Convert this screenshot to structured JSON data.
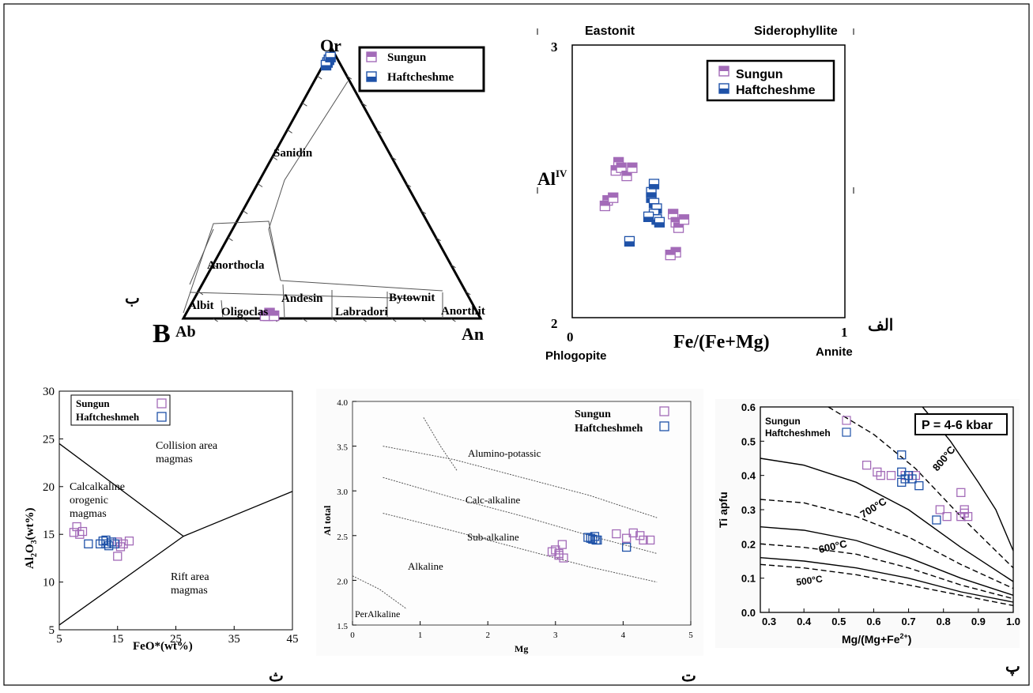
{
  "figure": {
    "colors": {
      "sungun": "#a36bb8",
      "haftcheshme": "#1f52a8",
      "frame": "#000000"
    }
  },
  "ternary": {
    "apex_top": "Or",
    "apex_left": "Ab",
    "apex_right": "An",
    "corner_letter": "B",
    "panel_label": "ب",
    "legend": [
      "Sungun",
      "Haftcheshme"
    ],
    "field_labels": [
      "Sanidin",
      "Anorthocla",
      "Albit",
      "Oligoclas",
      "Andesin",
      "Labradori",
      "Bytownit",
      "Anorthit"
    ],
    "chart_data": {
      "type": "scatter",
      "title": "",
      "components": [
        "Ab",
        "Or",
        "An"
      ],
      "series": [
        {
          "name": "Sungun",
          "points": [
            [
              71,
              1,
              28
            ],
            [
              70,
              2,
              28
            ],
            [
              72,
              1,
              27
            ],
            [
              69,
              1,
              30
            ]
          ]
        },
        {
          "name": "Haftcheshme",
          "points": [
            [
              4,
              95,
              1
            ],
            [
              3,
              96,
              1
            ],
            [
              5,
              94,
              1
            ],
            [
              2,
              97,
              1
            ]
          ]
        }
      ]
    }
  },
  "biotite": {
    "top_left_label": "Eastonit",
    "top_right_label": "Siderophyllite",
    "bottom_left_label": "Phlogopite",
    "bottom_right_label": "Annite",
    "ylabel_main": "Al",
    "ylabel_sup": "IV",
    "xlabel": "Fe/(Fe+Mg)",
    "y_top_tick": "3",
    "y_bottom_tick": "2",
    "x_left_tick": "0",
    "x_right_tick": "1",
    "panel_label": "الف",
    "legend": [
      "Sungun",
      "Haftcheshme"
    ],
    "chart_data": {
      "type": "scatter",
      "xlim": [
        0,
        1
      ],
      "ylim": [
        2,
        3
      ],
      "series": [
        {
          "name": "Sungun",
          "points": [
            [
              0.17,
              2.57
            ],
            [
              0.16,
              2.54
            ],
            [
              0.18,
              2.55
            ],
            [
              0.2,
              2.52
            ],
            [
              0.22,
              2.55
            ],
            [
              0.13,
              2.43
            ],
            [
              0.12,
              2.41
            ],
            [
              0.15,
              2.44
            ],
            [
              0.37,
              2.38
            ],
            [
              0.38,
              2.35
            ],
            [
              0.39,
              2.33
            ],
            [
              0.41,
              2.36
            ],
            [
              0.38,
              2.24
            ],
            [
              0.36,
              2.23
            ]
          ]
        },
        {
          "name": "Haftcheshme",
          "points": [
            [
              0.29,
              2.44
            ],
            [
              0.3,
              2.42
            ],
            [
              0.31,
              2.4
            ],
            [
              0.3,
              2.38
            ],
            [
              0.31,
              2.36
            ],
            [
              0.32,
              2.35
            ],
            [
              0.28,
              2.37
            ],
            [
              0.29,
              2.46
            ],
            [
              0.3,
              2.49
            ],
            [
              0.21,
              2.28
            ]
          ]
        }
      ]
    }
  },
  "feo": {
    "xlabel": "FeO*(wt%)",
    "ylabel_main": "Al",
    "ylabel_sub1": "2",
    "ylabel_mid": "O",
    "ylabel_sub2": "3",
    "ylabel_tail": "(wt%)",
    "x_ticks": [
      "5",
      "15",
      "25",
      "35",
      "45"
    ],
    "y_ticks": [
      "5",
      "10",
      "15",
      "20",
      "25",
      "30"
    ],
    "region_labels": {
      "collision_1": "Collision area",
      "collision_2": "magmas",
      "calc_1": "Calcalkaline",
      "calc_2": "orogenic",
      "calc_3": "magmas",
      "rift_1": "Rift area",
      "rift_2": "magmas"
    },
    "panel_label": "ث",
    "legend": [
      "Sungun",
      "Haftcheshmeh"
    ],
    "chart_data": {
      "type": "scatter",
      "xlim": [
        5,
        45
      ],
      "ylim": [
        5,
        30
      ],
      "series": [
        {
          "name": "Sungun",
          "x": [
            7.5,
            8.0,
            8.5,
            9.0,
            15.0,
            15.5,
            16.0,
            17.0,
            15.0
          ],
          "y": [
            15.2,
            15.8,
            15.0,
            15.3,
            14.2,
            13.7,
            14.0,
            14.3,
            12.7
          ]
        },
        {
          "name": "Haftcheshmeh",
          "x": [
            10.0,
            12.0,
            12.5,
            13.0,
            13.5,
            14.0,
            14.5,
            13.0
          ],
          "y": [
            14.0,
            14.0,
            14.3,
            14.0,
            13.8,
            14.2,
            14.0,
            14.4
          ]
        }
      ]
    }
  },
  "altotal": {
    "xlabel": "Mg",
    "ylabel": "Al total",
    "x_ticks": [
      "0",
      "1",
      "2",
      "3",
      "4",
      "5"
    ],
    "y_ticks": [
      "1.5",
      "2.0",
      "2.5",
      "3.0",
      "3.5",
      "4.0"
    ],
    "region_labels": {
      "alumino": "Alumino-potassic",
      "calc": "Calc-alkaline",
      "sub": "Sub-alkaline",
      "alkaline": "Alkaline",
      "per": "PerAlkaline"
    },
    "panel_label": "ت",
    "legend": [
      "Sungun",
      "Haftcheshmeh"
    ],
    "chart_data": {
      "type": "scatter",
      "xlim": [
        0,
        5
      ],
      "ylim": [
        1.5,
        4.0
      ],
      "series": [
        {
          "name": "Sungun",
          "x": [
            2.95,
            3.0,
            3.05,
            3.1,
            3.12,
            3.05,
            3.9,
            4.05,
            4.15,
            4.25,
            4.3,
            4.4
          ],
          "y": [
            2.32,
            2.34,
            2.28,
            2.4,
            2.25,
            2.3,
            2.52,
            2.47,
            2.53,
            2.5,
            2.45,
            2.45
          ]
        },
        {
          "name": "Haftcheshmeh",
          "x": [
            3.48,
            3.52,
            3.55,
            3.6,
            3.62,
            3.58,
            4.05
          ],
          "y": [
            2.48,
            2.47,
            2.46,
            2.45,
            2.45,
            2.49,
            2.37
          ]
        }
      ]
    }
  },
  "ti": {
    "xlabel": "Mg/(Mg+Fe",
    "xlabel_sup": "2+",
    "xlabel_tail": ")",
    "ylabel": "Ti apfu",
    "x_ticks": [
      "0.3",
      "0.4",
      "0.5",
      "0.6",
      "0.7",
      "0.8",
      "0.9",
      "1.0"
    ],
    "y_ticks": [
      "0.0",
      "0.1",
      "0.2",
      "0.3",
      "0.4",
      "0.5",
      "0.6"
    ],
    "pressure_label": "P = 4-6 kbar",
    "isotherm_labels": [
      "800°C",
      "700°C",
      "600°C",
      "500°C"
    ],
    "panel_label": "پ",
    "legend": [
      "Sungun",
      "Haftcheshmeh"
    ],
    "chart_data": {
      "type": "scatter",
      "xlim": [
        0.275,
        1.0
      ],
      "ylim": [
        0.0,
        0.6
      ],
      "series": [
        {
          "name": "Sungun",
          "x": [
            0.58,
            0.61,
            0.62,
            0.65,
            0.69,
            0.72,
            0.79,
            0.81,
            0.85,
            0.86,
            0.87,
            0.85,
            0.86
          ],
          "y": [
            0.43,
            0.41,
            0.4,
            0.4,
            0.4,
            0.4,
            0.3,
            0.28,
            0.35,
            0.3,
            0.28,
            0.28,
            0.29
          ]
        },
        {
          "name": "Haftcheshmeh",
          "x": [
            0.68,
            0.68,
            0.69,
            0.7,
            0.71,
            0.73,
            0.78,
            0.68
          ],
          "y": [
            0.46,
            0.41,
            0.39,
            0.4,
            0.39,
            0.37,
            0.27,
            0.38
          ]
        }
      ]
    }
  }
}
